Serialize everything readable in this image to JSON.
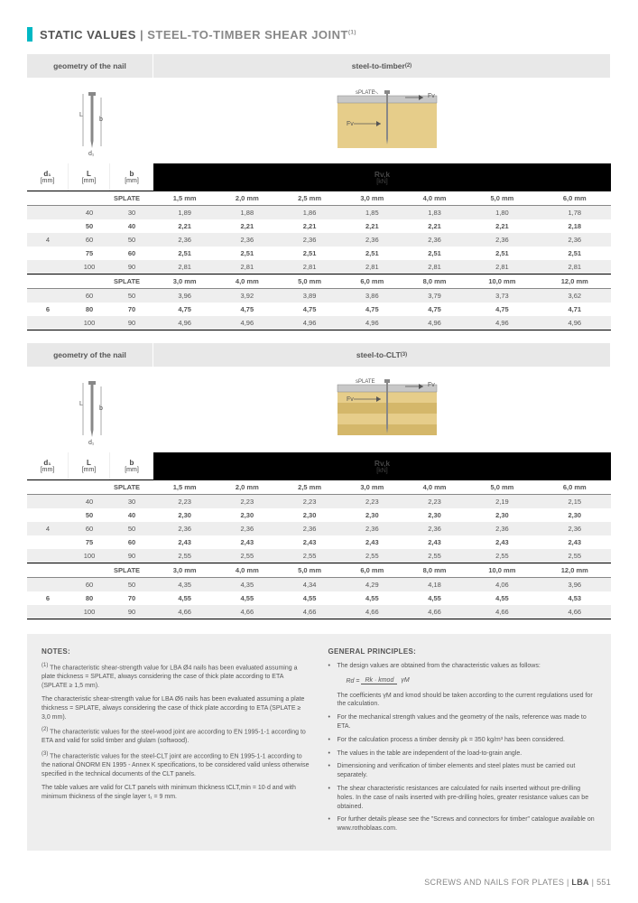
{
  "title_prefix": "STATIC VALUES",
  "title_main": "STEEL-TO-TIMBER SHEAR JOINT",
  "title_sup": "(1)",
  "header_geom": "geometry of the nail",
  "header_timber": "steel-to-timber",
  "header_timber_sup": "(2)",
  "header_clt": "steel-to-CLT",
  "header_clt_sup": "(3)",
  "diag_L": "L",
  "diag_b": "b",
  "diag_d1": "d₁",
  "diag_splate": "sPLATE",
  "diag_Fv": "Fv",
  "unit_d1": "d₁",
  "unit_d1_u": "[mm]",
  "unit_L": "L",
  "unit_L_u": "[mm]",
  "unit_b": "b",
  "unit_b_u": "[mm]",
  "unit_R": "Rv,k",
  "unit_R_u": "[kN]",
  "splate_label": "SPLATE",
  "tables": {
    "timber": {
      "group4_heads": [
        "1,5 mm",
        "2,0 mm",
        "2,5 mm",
        "3,0 mm",
        "4,0 mm",
        "5,0 mm",
        "6,0 mm"
      ],
      "group4": [
        {
          "d": "",
          "L": "40",
          "b": "30",
          "v": [
            "1,89",
            "1,88",
            "1,86",
            "1,85",
            "1,83",
            "1,80",
            "1,78"
          ],
          "shade": true
        },
        {
          "d": "",
          "L": "50",
          "b": "40",
          "v": [
            "2,21",
            "2,21",
            "2,21",
            "2,21",
            "2,21",
            "2,21",
            "2,18"
          ],
          "bold": true
        },
        {
          "d": "4",
          "L": "60",
          "b": "50",
          "v": [
            "2,36",
            "2,36",
            "2,36",
            "2,36",
            "2,36",
            "2,36",
            "2,36"
          ],
          "shade": true
        },
        {
          "d": "",
          "L": "75",
          "b": "60",
          "v": [
            "2,51",
            "2,51",
            "2,51",
            "2,51",
            "2,51",
            "2,51",
            "2,51"
          ],
          "bold": true
        },
        {
          "d": "",
          "L": "100",
          "b": "90",
          "v": [
            "2,81",
            "2,81",
            "2,81",
            "2,81",
            "2,81",
            "2,81",
            "2,81"
          ],
          "shade": true,
          "last": true
        }
      ],
      "group6_heads": [
        "3,0 mm",
        "4,0 mm",
        "5,0 mm",
        "6,0 mm",
        "8,0 mm",
        "10,0 mm",
        "12,0 mm"
      ],
      "group6": [
        {
          "d": "",
          "L": "60",
          "b": "50",
          "v": [
            "3,96",
            "3,92",
            "3,89",
            "3,86",
            "3,79",
            "3,73",
            "3,62"
          ],
          "shade": true
        },
        {
          "d": "6",
          "L": "80",
          "b": "70",
          "v": [
            "4,75",
            "4,75",
            "4,75",
            "4,75",
            "4,75",
            "4,75",
            "4,71"
          ],
          "bold": true
        },
        {
          "d": "",
          "L": "100",
          "b": "90",
          "v": [
            "4,96",
            "4,96",
            "4,96",
            "4,96",
            "4,96",
            "4,96",
            "4,96"
          ],
          "shade": true,
          "last": true
        }
      ]
    },
    "clt": {
      "group4_heads": [
        "1,5 mm",
        "2,0 mm",
        "2,5 mm",
        "3,0 mm",
        "4,0 mm",
        "5,0 mm",
        "6,0 mm"
      ],
      "group4": [
        {
          "d": "",
          "L": "40",
          "b": "30",
          "v": [
            "2,23",
            "2,23",
            "2,23",
            "2,23",
            "2,23",
            "2,19",
            "2,15"
          ],
          "shade": true
        },
        {
          "d": "",
          "L": "50",
          "b": "40",
          "v": [
            "2,30",
            "2,30",
            "2,30",
            "2,30",
            "2,30",
            "2,30",
            "2,30"
          ],
          "bold": true
        },
        {
          "d": "4",
          "L": "60",
          "b": "50",
          "v": [
            "2,36",
            "2,36",
            "2,36",
            "2,36",
            "2,36",
            "2,36",
            "2,36"
          ],
          "shade": true
        },
        {
          "d": "",
          "L": "75",
          "b": "60",
          "v": [
            "2,43",
            "2,43",
            "2,43",
            "2,43",
            "2,43",
            "2,43",
            "2,43"
          ],
          "bold": true
        },
        {
          "d": "",
          "L": "100",
          "b": "90",
          "v": [
            "2,55",
            "2,55",
            "2,55",
            "2,55",
            "2,55",
            "2,55",
            "2,55"
          ],
          "shade": true,
          "last": true
        }
      ],
      "group6_heads": [
        "3,0 mm",
        "4,0 mm",
        "5,0 mm",
        "6,0 mm",
        "8,0 mm",
        "10,0 mm",
        "12,0 mm"
      ],
      "group6": [
        {
          "d": "",
          "L": "60",
          "b": "50",
          "v": [
            "4,35",
            "4,35",
            "4,34",
            "4,29",
            "4,18",
            "4,06",
            "3,96"
          ],
          "shade": true
        },
        {
          "d": "6",
          "L": "80",
          "b": "70",
          "v": [
            "4,55",
            "4,55",
            "4,55",
            "4,55",
            "4,55",
            "4,55",
            "4,53"
          ],
          "bold": true
        },
        {
          "d": "",
          "L": "100",
          "b": "90",
          "v": [
            "4,66",
            "4,66",
            "4,66",
            "4,66",
            "4,66",
            "4,66",
            "4,66"
          ],
          "shade": true,
          "last": true
        }
      ]
    }
  },
  "notes_title": "NOTES:",
  "notes": [
    {
      "sup": "(1)",
      "text": "The characteristic shear-strength value for LBA Ø4 nails has been evaluated assuming a plate thickness = SPLATE, always considering the case of thick plate according to ETA (SPLATE ≥ 1,5 mm)."
    },
    {
      "sup": "",
      "text": "The characteristic shear-strength value for LBA Ø6 nails has been evaluated assuming a plate thickness = SPLATE, always considering the case of thick plate according to ETA (SPLATE ≥ 3,0 mm)."
    },
    {
      "sup": "(2)",
      "text": "The characteristic values for the steel-wood joint are according to EN 1995-1-1 according to ETA and valid for solid timber and glulam (softwood)."
    },
    {
      "sup": "(3)",
      "text": "The characteristic values for the steel-CLT joint are according to EN 1995-1-1 according to the national ÖNORM EN 1995 - Annex K specifications, to be considered valid unless otherwise specified in the technical documents of the CLT panels."
    },
    {
      "sup": "",
      "text": "The table values are valid for CLT panels with minimum thickness tCLT,min = 10·d and with minimum thickness of the single layer t₁ = 9 mm."
    }
  ],
  "principles_title": "GENERAL PRINCIPLES:",
  "principles_intro": "The design values are obtained from the characteristic values as follows:",
  "formula_Rd": "Rd =",
  "formula_num": "Rk · kmod",
  "formula_den": "γM",
  "principles_after": "The coefficients γM and kmod should be taken according to the current regulations used for the calculation.",
  "principles": [
    "For the mechanical strength values and the geometry of the nails, reference was made to ETA.",
    "For the calculation process a timber density ρk = 350 kg/m³ has been considered.",
    "The values in the table are independent of the load-to-grain angle.",
    "Dimensioning and verification of timber elements and steel plates must be carried out separately.",
    "The shear characteristic resistances are calculated for nails inserted without pre-drilling holes. In the case of nails inserted with pre-drilling holes, greater resistance values can be obtained.",
    "For further details please see the \"Screws and connectors for timber\" catalogue available on www.rothoblaas.com."
  ],
  "footer_text": "SCREWS AND NAILS FOR PLATES",
  "footer_code": "LBA",
  "footer_page": "551",
  "colors": {
    "accent": "#00b8c4",
    "wood1": "#e6cd8a",
    "wood2": "#d4b76a",
    "steel": "#c8c8c8",
    "nail": "#888888"
  }
}
